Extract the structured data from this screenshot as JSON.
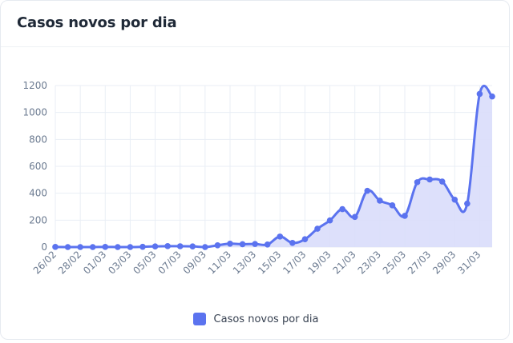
{
  "card": {
    "title": "Casos novos por dia"
  },
  "chart_data": {
    "type": "area",
    "title": "Casos novos por dia",
    "xlabel": "",
    "ylabel": "",
    "x": [
      "26/02",
      "27/02",
      "28/02",
      "29/02",
      "01/03",
      "02/03",
      "03/03",
      "04/03",
      "05/03",
      "06/03",
      "07/03",
      "08/03",
      "09/03",
      "10/03",
      "11/03",
      "12/03",
      "13/03",
      "14/03",
      "15/03",
      "16/03",
      "17/03",
      "18/03",
      "19/03",
      "20/03",
      "21/03",
      "22/03",
      "23/03",
      "24/03",
      "25/03",
      "26/03",
      "27/03",
      "28/03",
      "29/03",
      "30/03",
      "31/03",
      "01/04"
    ],
    "x_tick_labels": [
      "26/02",
      "28/02",
      "01/03",
      "03/03",
      "05/03",
      "07/03",
      "09/03",
      "11/03",
      "13/03",
      "15/03",
      "17/03",
      "19/03",
      "21/03",
      "23/03",
      "25/03",
      "27/03",
      "29/03",
      "31/03"
    ],
    "series": [
      {
        "name": "Casos novos por dia",
        "values": [
          1,
          0,
          0,
          0,
          1,
          0,
          0,
          2,
          5,
          7,
          6,
          5,
          0,
          13,
          25,
          21,
          23,
          19,
          78,
          31,
          58,
          136,
          198,
          282,
          224,
          418,
          345,
          310,
          232,
          482,
          502,
          487,
          352,
          323,
          1138,
          1119
        ]
      }
    ],
    "ylim": [
      0,
      1200
    ],
    "y_ticks": [
      0,
      200,
      400,
      600,
      800,
      1000,
      1200
    ],
    "grid": true,
    "legend_position": "bottom",
    "colors": {
      "line": "#5b73ef",
      "fill": "#d9ddfb",
      "grid": "#e9eef5",
      "axis_text": "#6b7a90"
    }
  }
}
